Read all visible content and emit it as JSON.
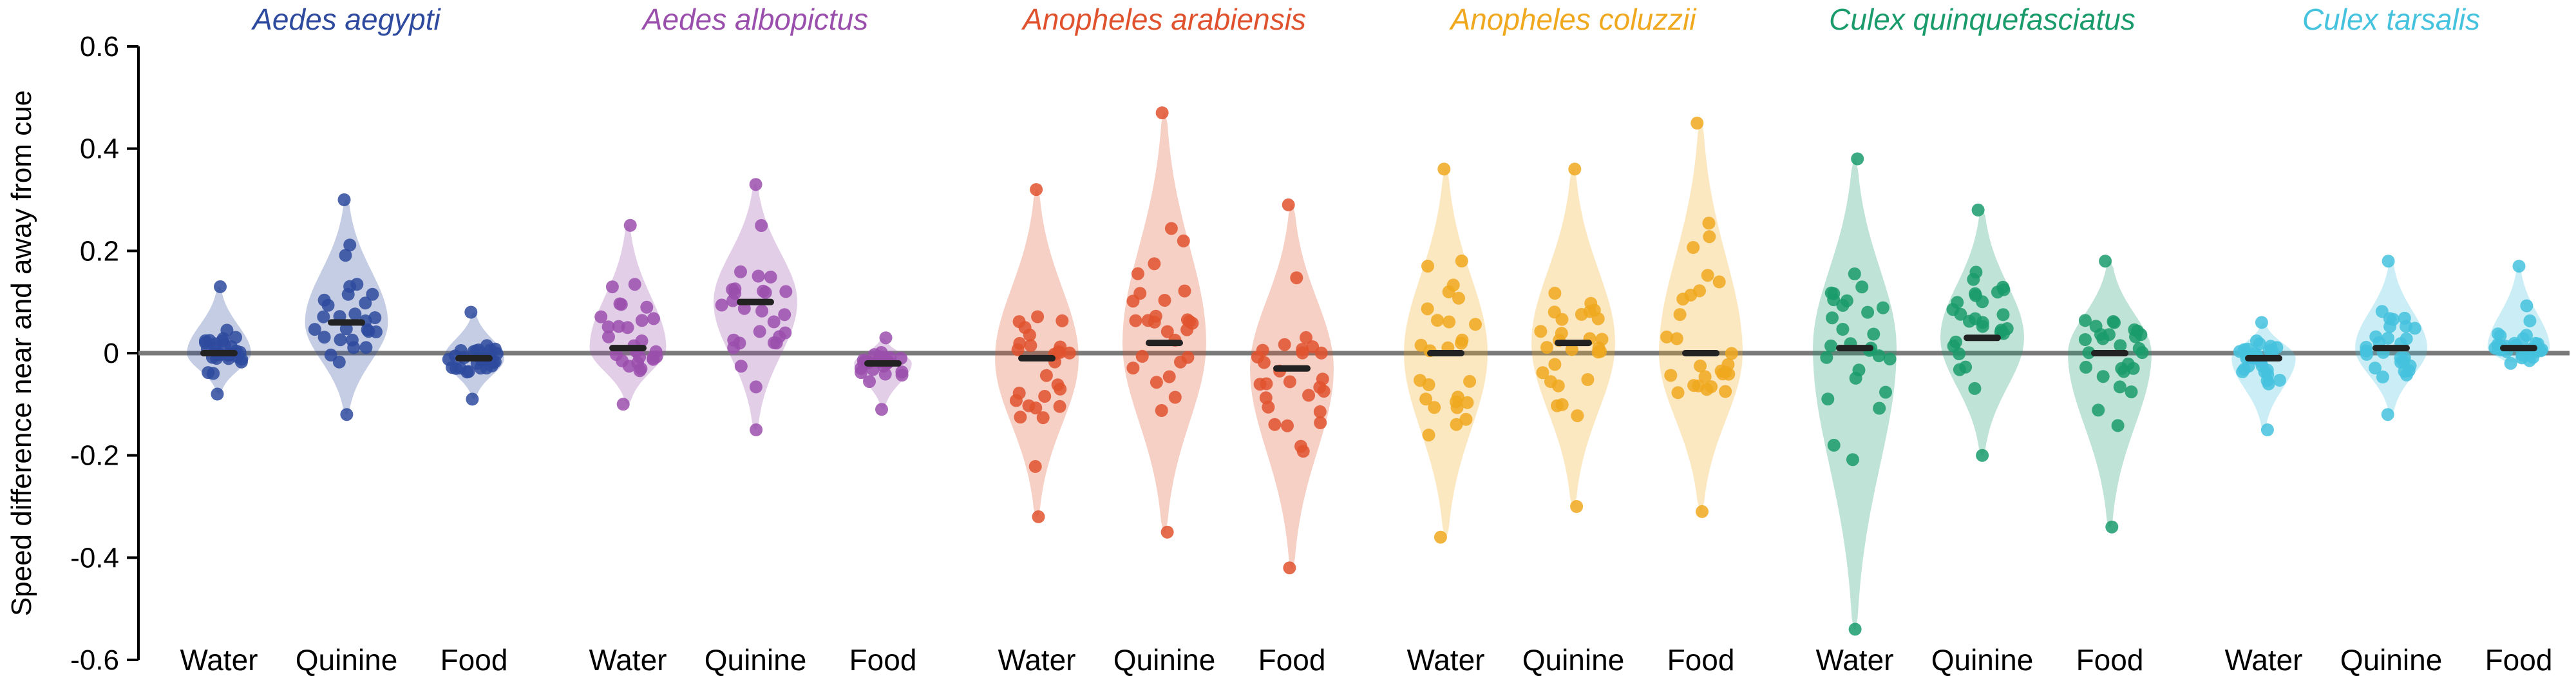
{
  "chart_data": {
    "type": "violin",
    "ylabel": "Speed difference near and away from cue",
    "ylim": [
      -0.6,
      0.6
    ],
    "yticks": [
      0.6,
      0.4,
      0.2,
      0,
      -0.2,
      -0.4,
      -0.6
    ],
    "ytick_labels": [
      "0.6",
      "0.4",
      "0.2",
      "0",
      "-0.2",
      "-0.4",
      "-0.6"
    ],
    "zero_line": true,
    "groups": [
      {
        "species": "Aedes aegypti",
        "color": "#2e4a9e",
        "conditions": [
          {
            "label": "Water",
            "median": 0.0,
            "min": -0.08,
            "max": 0.13
          },
          {
            "label": "Quinine",
            "median": 0.06,
            "min": -0.12,
            "max": 0.3
          },
          {
            "label": "Food",
            "median": -0.01,
            "min": -0.09,
            "max": 0.08
          }
        ]
      },
      {
        "species": "Aedes albopictus",
        "color": "#9b4fad",
        "conditions": [
          {
            "label": "Water",
            "median": 0.01,
            "min": -0.1,
            "max": 0.25
          },
          {
            "label": "Quinine",
            "median": 0.1,
            "min": -0.15,
            "max": 0.33
          },
          {
            "label": "Food",
            "median": -0.02,
            "min": -0.11,
            "max": 0.03
          }
        ]
      },
      {
        "species": "Anopheles arabiensis",
        "color": "#e0522e",
        "conditions": [
          {
            "label": "Water",
            "median": -0.01,
            "min": -0.32,
            "max": 0.32
          },
          {
            "label": "Quinine",
            "median": 0.02,
            "min": -0.35,
            "max": 0.47
          },
          {
            "label": "Food",
            "median": -0.03,
            "min": -0.42,
            "max": 0.29
          }
        ]
      },
      {
        "species": "Anopheles coluzzii",
        "color": "#f0a81e",
        "conditions": [
          {
            "label": "Water",
            "median": 0.0,
            "min": -0.36,
            "max": 0.36
          },
          {
            "label": "Quinine",
            "median": 0.02,
            "min": -0.3,
            "max": 0.36
          },
          {
            "label": "Food",
            "median": 0.0,
            "min": -0.31,
            "max": 0.45
          }
        ]
      },
      {
        "species": "Culex quinquefasciatus",
        "color": "#1a9b6c",
        "conditions": [
          {
            "label": "Water",
            "median": 0.01,
            "min": -0.54,
            "max": 0.38
          },
          {
            "label": "Quinine",
            "median": 0.03,
            "min": -0.2,
            "max": 0.28
          },
          {
            "label": "Food",
            "median": 0.0,
            "min": -0.34,
            "max": 0.18
          }
        ]
      },
      {
        "species": "Culex tarsalis",
        "color": "#45c2de",
        "conditions": [
          {
            "label": "Water",
            "median": -0.01,
            "min": -0.15,
            "max": 0.06
          },
          {
            "label": "Quinine",
            "median": 0.01,
            "min": -0.12,
            "max": 0.18
          },
          {
            "label": "Food",
            "median": 0.01,
            "min": -0.02,
            "max": 0.17
          }
        ]
      }
    ]
  }
}
